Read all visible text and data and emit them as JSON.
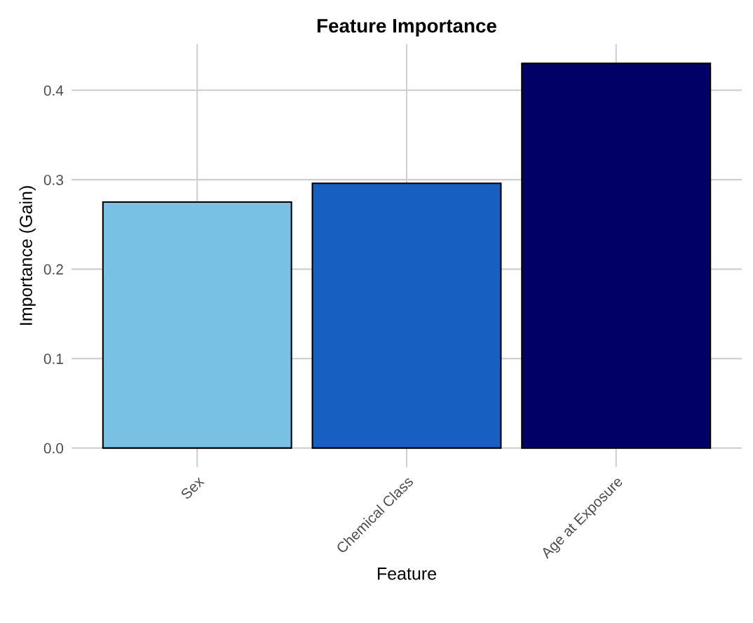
{
  "chart_data": {
    "type": "bar",
    "title": "Feature Importance",
    "xlabel": "Feature",
    "ylabel": "Importance (Gain)",
    "categories": [
      "Sex",
      "Chemical Class",
      "Age at Exposure"
    ],
    "values": [
      0.275,
      0.296,
      0.43
    ],
    "colors": [
      "#78c1e4",
      "#1760c2",
      "#000066"
    ],
    "ylim": [
      -0.0215,
      0.4515
    ],
    "yticks": [
      {
        "value": 0,
        "label": "0.0"
      },
      0.1,
      0.2,
      0.3,
      0.4
    ],
    "grid": true
  }
}
